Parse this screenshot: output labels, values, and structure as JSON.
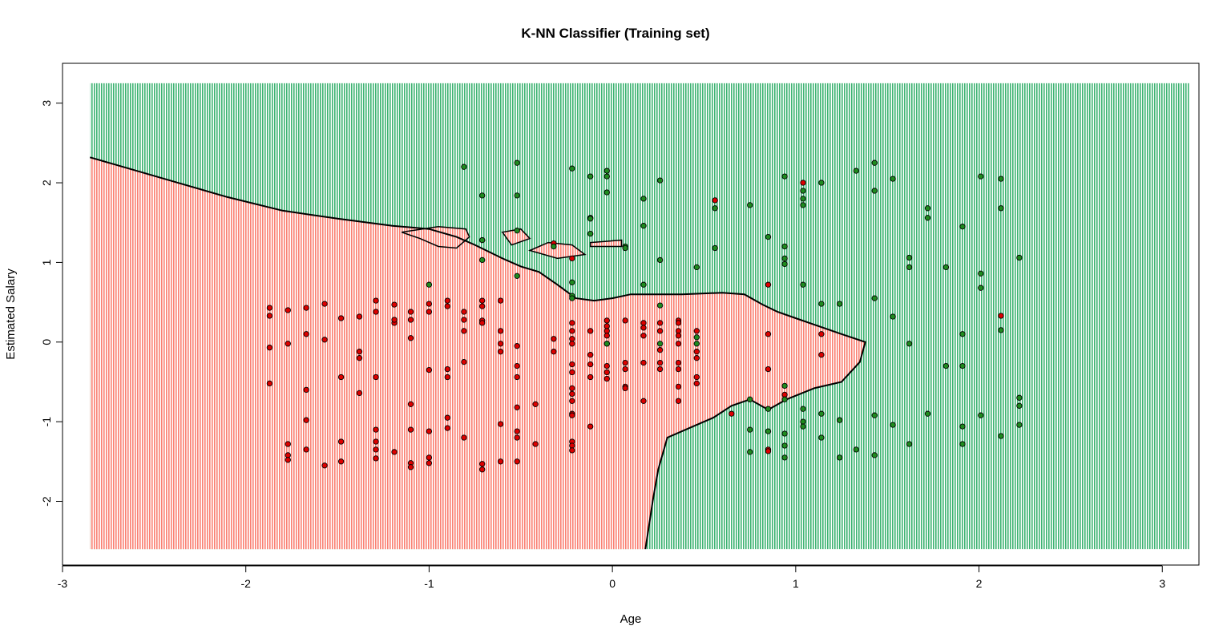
{
  "chart_data": {
    "type": "scatter",
    "title": "K-NN Classifier (Training set)",
    "xlabel": "Age",
    "ylabel": "Estimated Salary",
    "xlim": [
      -3,
      3.2
    ],
    "ylim": [
      -2.8,
      3.5
    ],
    "grid_range": {
      "x": [
        -2.85,
        3.15
      ],
      "y": [
        -2.6,
        3.25
      ]
    },
    "xticks": [
      -3,
      -2,
      -1,
      0,
      1,
      2,
      3
    ],
    "yticks": [
      -2,
      -1,
      0,
      1,
      2,
      3
    ],
    "grid": false,
    "legend": "none",
    "region_colors": {
      "class0": "#fa8072",
      "class1": "#3cb371"
    },
    "point_colors": {
      "class0": "#dd0000",
      "class1": "#1f8b1f"
    },
    "decision_boundary": [
      [
        -2.85,
        2.32
      ],
      [
        -2.7,
        2.22
      ],
      [
        -2.4,
        2.02
      ],
      [
        -2.1,
        1.82
      ],
      [
        -1.8,
        1.65
      ],
      [
        -1.5,
        1.55
      ],
      [
        -1.2,
        1.46
      ],
      [
        -1.0,
        1.42
      ],
      [
        -0.85,
        1.32
      ],
      [
        -0.75,
        1.22
      ],
      [
        -0.6,
        1.05
      ],
      [
        -0.5,
        0.95
      ],
      [
        -0.4,
        0.88
      ],
      [
        -0.3,
        0.72
      ],
      [
        -0.2,
        0.55
      ],
      [
        -0.1,
        0.52
      ],
      [
        0.0,
        0.55
      ],
      [
        0.1,
        0.6
      ],
      [
        0.25,
        0.6
      ],
      [
        0.38,
        0.6
      ],
      [
        0.6,
        0.62
      ],
      [
        0.72,
        0.6
      ],
      [
        0.82,
        0.47
      ],
      [
        0.9,
        0.38
      ],
      [
        1.0,
        0.3
      ],
      [
        1.1,
        0.22
      ],
      [
        1.25,
        0.1
      ],
      [
        1.38,
        0.0
      ],
      [
        1.35,
        -0.25
      ],
      [
        1.25,
        -0.5
      ],
      [
        1.1,
        -0.58
      ],
      [
        0.95,
        -0.72
      ],
      [
        0.85,
        -0.85
      ],
      [
        0.75,
        -0.72
      ],
      [
        0.65,
        -0.8
      ],
      [
        0.55,
        -0.95
      ],
      [
        0.45,
        -1.05
      ],
      [
        0.3,
        -1.2
      ],
      [
        0.25,
        -1.6
      ],
      [
        0.22,
        -2.0
      ],
      [
        0.2,
        -2.3
      ],
      [
        0.18,
        -2.6
      ]
    ],
    "class0_islands": [
      [
        [
          -1.15,
          1.38
        ],
        [
          -0.95,
          1.45
        ],
        [
          -0.8,
          1.42
        ],
        [
          -0.78,
          1.32
        ],
        [
          -0.85,
          1.18
        ],
        [
          -0.95,
          1.2
        ],
        [
          -1.05,
          1.3
        ]
      ],
      [
        [
          -0.6,
          1.38
        ],
        [
          -0.5,
          1.42
        ],
        [
          -0.45,
          1.3
        ],
        [
          -0.55,
          1.22
        ]
      ],
      [
        [
          -0.45,
          1.15
        ],
        [
          -0.35,
          1.25
        ],
        [
          -0.22,
          1.22
        ],
        [
          -0.15,
          1.1
        ],
        [
          -0.3,
          1.05
        ]
      ],
      [
        [
          -0.12,
          1.25
        ],
        [
          0.05,
          1.28
        ],
        [
          0.05,
          1.2
        ],
        [
          -0.12,
          1.2
        ]
      ]
    ],
    "class0_points": [
      [
        -1.87,
        0.43
      ],
      [
        -1.87,
        0.33
      ],
      [
        -1.87,
        -0.07
      ],
      [
        -1.87,
        -0.52
      ],
      [
        -1.77,
        0.4
      ],
      [
        -1.77,
        -0.02
      ],
      [
        -1.77,
        -1.28
      ],
      [
        -1.77,
        -1.42
      ],
      [
        -1.77,
        -1.48
      ],
      [
        -1.67,
        0.43
      ],
      [
        -1.67,
        0.1
      ],
      [
        -1.67,
        -0.6
      ],
      [
        -1.67,
        -0.98
      ],
      [
        -1.67,
        -1.35
      ],
      [
        -1.57,
        0.48
      ],
      [
        -1.57,
        0.03
      ],
      [
        -1.57,
        -1.55
      ],
      [
        -1.48,
        0.3
      ],
      [
        -1.48,
        -0.44
      ],
      [
        -1.48,
        -1.25
      ],
      [
        -1.48,
        -1.5
      ],
      [
        -1.38,
        0.32
      ],
      [
        -1.38,
        -0.12
      ],
      [
        -1.38,
        -0.2
      ],
      [
        -1.38,
        -0.64
      ],
      [
        -1.29,
        0.52
      ],
      [
        -1.29,
        0.38
      ],
      [
        -1.29,
        -0.44
      ],
      [
        -1.29,
        -1.1
      ],
      [
        -1.29,
        -1.25
      ],
      [
        -1.29,
        -1.35
      ],
      [
        -1.29,
        -1.46
      ],
      [
        -1.19,
        0.47
      ],
      [
        -1.19,
        0.24
      ],
      [
        -1.19,
        0.28
      ],
      [
        -1.19,
        -1.38
      ],
      [
        -1.1,
        0.38
      ],
      [
        -1.1,
        0.28
      ],
      [
        -1.1,
        0.05
      ],
      [
        -1.1,
        -0.78
      ],
      [
        -1.1,
        -1.1
      ],
      [
        -1.1,
        -1.52
      ],
      [
        -1.1,
        -1.57
      ],
      [
        -1.0,
        0.48
      ],
      [
        -1.0,
        0.38
      ],
      [
        -1.0,
        -0.35
      ],
      [
        -1.0,
        -1.12
      ],
      [
        -1.0,
        -1.45
      ],
      [
        -1.0,
        -1.52
      ],
      [
        -0.9,
        0.52
      ],
      [
        -0.9,
        0.45
      ],
      [
        -0.9,
        -0.34
      ],
      [
        -0.9,
        -0.44
      ],
      [
        -0.9,
        -0.95
      ],
      [
        -0.9,
        -1.08
      ],
      [
        -0.81,
        0.38
      ],
      [
        -0.81,
        0.28
      ],
      [
        -0.81,
        0.14
      ],
      [
        -0.81,
        -0.25
      ],
      [
        -0.81,
        -1.2
      ],
      [
        -0.71,
        0.52
      ],
      [
        -0.71,
        0.45
      ],
      [
        -0.71,
        0.27
      ],
      [
        -0.71,
        0.24
      ],
      [
        -0.71,
        -1.53
      ],
      [
        -0.71,
        -1.6
      ],
      [
        -0.61,
        0.52
      ],
      [
        -0.61,
        0.14
      ],
      [
        -0.61,
        -0.02
      ],
      [
        -0.61,
        -0.12
      ],
      [
        -0.61,
        -1.03
      ],
      [
        -0.61,
        -1.5
      ],
      [
        -0.52,
        -0.05
      ],
      [
        -0.52,
        -0.3
      ],
      [
        -0.52,
        -0.44
      ],
      [
        -0.52,
        -0.82
      ],
      [
        -0.52,
        -1.12
      ],
      [
        -0.52,
        -1.2
      ],
      [
        -0.52,
        -1.5
      ],
      [
        -0.42,
        -0.78
      ],
      [
        -0.42,
        -1.28
      ],
      [
        -0.32,
        0.04
      ],
      [
        -0.32,
        -0.12
      ],
      [
        -0.22,
        0.24
      ],
      [
        -0.22,
        0.14
      ],
      [
        -0.22,
        0.04
      ],
      [
        -0.22,
        -0.02
      ],
      [
        -0.22,
        -0.28
      ],
      [
        -0.22,
        -0.38
      ],
      [
        -0.22,
        -0.58
      ],
      [
        -0.22,
        -0.65
      ],
      [
        -0.22,
        -0.74
      ],
      [
        -0.22,
        -0.9
      ],
      [
        -0.22,
        -0.92
      ],
      [
        -0.22,
        -1.25
      ],
      [
        -0.22,
        -1.3
      ],
      [
        -0.22,
        -1.36
      ],
      [
        -0.12,
        0.14
      ],
      [
        -0.12,
        -0.16
      ],
      [
        -0.12,
        -0.28
      ],
      [
        -0.12,
        -0.44
      ],
      [
        -0.12,
        -1.06
      ],
      [
        -0.03,
        0.27
      ],
      [
        -0.03,
        0.2
      ],
      [
        -0.03,
        0.14
      ],
      [
        -0.03,
        0.08
      ],
      [
        -0.03,
        -0.02
      ],
      [
        -0.03,
        -0.3
      ],
      [
        -0.03,
        -0.38
      ],
      [
        -0.03,
        -0.46
      ],
      [
        0.07,
        0.27
      ],
      [
        0.07,
        -0.26
      ],
      [
        0.07,
        -0.34
      ],
      [
        0.07,
        -0.56
      ],
      [
        0.07,
        -0.58
      ],
      [
        0.17,
        0.24
      ],
      [
        0.17,
        0.18
      ],
      [
        0.17,
        0.08
      ],
      [
        0.17,
        -0.26
      ],
      [
        0.17,
        -0.74
      ],
      [
        0.26,
        0.24
      ],
      [
        0.26,
        0.14
      ],
      [
        0.26,
        -0.1
      ],
      [
        0.26,
        -0.26
      ],
      [
        0.26,
        -0.34
      ],
      [
        0.36,
        0.27
      ],
      [
        0.36,
        0.24
      ],
      [
        0.36,
        0.14
      ],
      [
        0.36,
        0.08
      ],
      [
        0.36,
        -0.02
      ],
      [
        0.36,
        -0.26
      ],
      [
        0.36,
        -0.34
      ],
      [
        0.36,
        -0.56
      ],
      [
        0.36,
        -0.74
      ],
      [
        0.46,
        0.14
      ],
      [
        0.46,
        -0.12
      ],
      [
        0.46,
        -0.2
      ],
      [
        0.46,
        -0.44
      ],
      [
        0.46,
        -0.52
      ],
      [
        0.85,
        0.1
      ],
      [
        0.85,
        -0.34
      ],
      [
        1.14,
        0.1
      ],
      [
        1.14,
        -0.16
      ],
      [
        0.56,
        1.78
      ],
      [
        0.85,
        0.72
      ],
      [
        0.94,
        -0.66
      ],
      [
        1.04,
        2.0
      ],
      [
        2.12,
        0.33
      ],
      [
        -0.71,
        1.28
      ],
      [
        -0.32,
        1.24
      ],
      [
        -0.22,
        1.05
      ],
      [
        0.65,
        -0.9
      ],
      [
        0.85,
        -1.35
      ],
      [
        0.85,
        -1.37
      ]
    ],
    "class1_points": [
      [
        -1.0,
        0.72
      ],
      [
        -0.03,
        -0.02
      ],
      [
        0.26,
        0.46
      ],
      [
        0.26,
        -0.02
      ],
      [
        0.46,
        -0.02
      ],
      [
        0.56,
        1.68
      ],
      [
        0.56,
        1.18
      ],
      [
        0.46,
        0.94
      ],
      [
        0.17,
        1.8
      ],
      [
        0.17,
        1.46
      ],
      [
        0.17,
        0.72
      ],
      [
        0.07,
        1.2
      ],
      [
        0.07,
        1.18
      ],
      [
        -0.03,
        2.15
      ],
      [
        -0.03,
        2.08
      ],
      [
        -0.03,
        1.88
      ],
      [
        -0.12,
        2.08
      ],
      [
        -0.12,
        1.56
      ],
      [
        -0.12,
        1.36
      ],
      [
        -0.22,
        2.18
      ],
      [
        -0.22,
        0.75
      ],
      [
        -0.22,
        0.58
      ],
      [
        -0.22,
        0.55
      ],
      [
        -0.52,
        2.25
      ],
      [
        -0.52,
        1.84
      ],
      [
        -0.52,
        1.4
      ],
      [
        -0.52,
        0.83
      ],
      [
        -0.71,
        1.84
      ],
      [
        -0.71,
        1.03
      ],
      [
        -0.81,
        2.2
      ],
      [
        0.26,
        2.03
      ],
      [
        0.26,
        1.03
      ],
      [
        0.75,
        1.72
      ],
      [
        0.85,
        1.32
      ],
      [
        0.94,
        2.08
      ],
      [
        0.94,
        1.2
      ],
      [
        0.94,
        1.05
      ],
      [
        0.94,
        0.98
      ],
      [
        0.94,
        -0.55
      ],
      [
        0.94,
        -0.72
      ],
      [
        0.94,
        -1.15
      ],
      [
        0.94,
        -1.3
      ],
      [
        0.94,
        -1.45
      ],
      [
        1.04,
        1.9
      ],
      [
        1.04,
        1.8
      ],
      [
        1.04,
        1.72
      ],
      [
        1.04,
        0.72
      ],
      [
        1.04,
        -0.84
      ],
      [
        1.04,
        -1.0
      ],
      [
        1.04,
        -1.06
      ],
      [
        1.14,
        2.0
      ],
      [
        1.14,
        0.48
      ],
      [
        1.14,
        -0.9
      ],
      [
        1.14,
        -1.2
      ],
      [
        1.24,
        0.48
      ],
      [
        1.24,
        -0.98
      ],
      [
        1.24,
        -1.45
      ],
      [
        1.33,
        2.15
      ],
      [
        1.33,
        -1.35
      ],
      [
        1.43,
        2.25
      ],
      [
        1.43,
        1.9
      ],
      [
        1.43,
        0.55
      ],
      [
        1.43,
        -0.92
      ],
      [
        1.43,
        -1.42
      ],
      [
        1.53,
        2.05
      ],
      [
        1.53,
        0.32
      ],
      [
        1.53,
        -1.04
      ],
      [
        1.62,
        1.06
      ],
      [
        1.62,
        0.94
      ],
      [
        1.62,
        -0.02
      ],
      [
        1.62,
        -1.28
      ],
      [
        1.72,
        1.68
      ],
      [
        1.72,
        1.56
      ],
      [
        1.72,
        -0.9
      ],
      [
        1.82,
        0.94
      ],
      [
        1.82,
        -0.3
      ],
      [
        1.91,
        1.45
      ],
      [
        1.91,
        0.1
      ],
      [
        1.91,
        -0.3
      ],
      [
        1.91,
        -1.06
      ],
      [
        1.91,
        -1.28
      ],
      [
        2.01,
        2.08
      ],
      [
        2.01,
        0.86
      ],
      [
        2.01,
        0.68
      ],
      [
        2.01,
        -0.92
      ],
      [
        2.12,
        2.05
      ],
      [
        2.12,
        1.68
      ],
      [
        2.12,
        0.15
      ],
      [
        2.12,
        -1.18
      ],
      [
        2.22,
        1.06
      ],
      [
        2.22,
        -0.7
      ],
      [
        2.22,
        -0.8
      ],
      [
        2.22,
        -1.04
      ],
      [
        0.75,
        -0.72
      ],
      [
        0.75,
        -1.1
      ],
      [
        0.75,
        -1.38
      ],
      [
        0.85,
        -0.84
      ],
      [
        0.85,
        -1.12
      ],
      [
        0.46,
        0.06
      ],
      [
        -0.12,
        1.55
      ],
      [
        -0.71,
        1.28
      ],
      [
        -0.32,
        1.2
      ]
    ]
  }
}
